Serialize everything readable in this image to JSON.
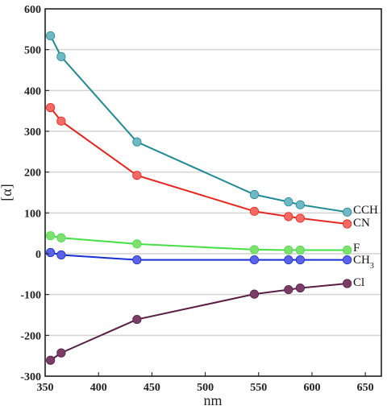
{
  "chart_data": {
    "type": "line",
    "xlabel": "nm",
    "ylabel": "[α]",
    "xlim": [
      350,
      665
    ],
    "ylim": [
      -300,
      600
    ],
    "x_ticks": [
      350,
      400,
      450,
      500,
      550,
      600,
      650
    ],
    "y_ticks": [
      -300,
      -200,
      -100,
      0,
      100,
      200,
      300,
      400,
      500,
      600
    ],
    "grid": "horizontal",
    "x": [
      355,
      365,
      436,
      546,
      578,
      589,
      633
    ],
    "series": [
      {
        "name": "CCH",
        "label_sub": "",
        "line_color": "#1f8a96",
        "marker_color": "#6fb8c4",
        "values": [
          534,
          483,
          274,
          145,
          127,
          120,
          102
        ]
      },
      {
        "name": "CN",
        "label_sub": "",
        "line_color": "#e8261f",
        "marker_color": "#f46b66",
        "values": [
          358,
          325,
          192,
          104,
          91,
          87,
          73
        ]
      },
      {
        "name": "F",
        "label_sub": "",
        "line_color": "#44e044",
        "marker_color": "#7fe06f",
        "values": [
          44,
          39,
          24,
          10,
          9,
          9,
          9
        ]
      },
      {
        "name": "CH",
        "label_sub": "3",
        "line_color": "#1a2fd6",
        "marker_color": "#5b63e6",
        "values": [
          3,
          -3,
          -15,
          -15,
          -15,
          -15,
          -15
        ]
      },
      {
        "name": "Cl",
        "label_sub": "",
        "line_color": "#5a1e46",
        "marker_color": "#7a3e66",
        "values": [
          -261,
          -243,
          -161,
          -99,
          -88,
          -84,
          -73
        ]
      }
    ]
  }
}
